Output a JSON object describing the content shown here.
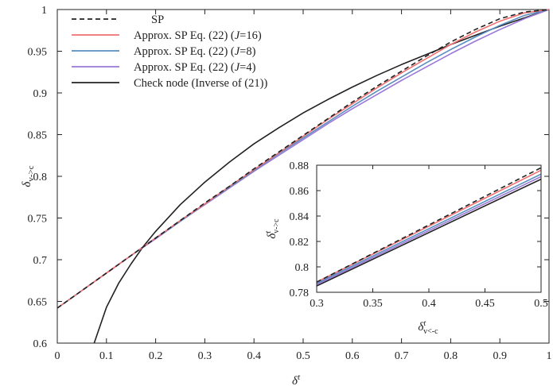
{
  "chart_data": [
    {
      "type": "line",
      "title": "",
      "xlabel": "δ",
      "xlabel_sup": "t",
      "ylabel": "δ",
      "ylabel_sub": "v->c",
      "xlim": [
        0,
        1
      ],
      "ylim": [
        0.6,
        1
      ],
      "x_ticks": [
        0,
        0.1,
        0.2,
        0.3,
        0.4,
        0.5,
        0.6,
        0.7,
        0.8,
        0.9,
        1
      ],
      "x_tick_labels": [
        "0",
        "0.1",
        "0.2",
        "0.3",
        "0.4",
        "0.5",
        "0.6",
        "0.7",
        "0.8",
        "0.9",
        "1"
      ],
      "y_ticks": [
        0.6,
        0.65,
        0.7,
        0.75,
        0.8,
        0.85,
        0.9,
        0.95,
        1
      ],
      "y_tick_labels": [
        "0.6",
        "0.65",
        "0.7",
        "0.75",
        "0.8",
        "0.85",
        "0.9",
        "0.95",
        "1"
      ],
      "grid": false,
      "legend_position": "top-left",
      "series": [
        {
          "name": "SP",
          "color": "#222222",
          "dash": true,
          "x": [
            0,
            0.05,
            0.1,
            0.15,
            0.2,
            0.25,
            0.3,
            0.35,
            0.4,
            0.45,
            0.5,
            0.55,
            0.6,
            0.65,
            0.7,
            0.75,
            0.8,
            0.85,
            0.9,
            0.95,
            1
          ],
          "y": [
            0.642,
            0.663,
            0.684,
            0.705,
            0.726,
            0.747,
            0.768,
            0.788,
            0.809,
            0.829,
            0.849,
            0.869,
            0.889,
            0.908,
            0.926,
            0.944,
            0.961,
            0.976,
            0.989,
            0.997,
            1.0
          ]
        },
        {
          "name": "Approx. SP Eq. (22) (J=16)",
          "name_parts": [
            "Approx. SP Eq. (22) (",
            "J",
            "=16)"
          ],
          "color": "#f07070",
          "dash": false,
          "x": [
            0,
            0.05,
            0.1,
            0.15,
            0.2,
            0.25,
            0.3,
            0.35,
            0.4,
            0.45,
            0.5,
            0.55,
            0.6,
            0.65,
            0.7,
            0.75,
            0.8,
            0.85,
            0.9,
            0.95,
            1
          ],
          "y": [
            0.642,
            0.663,
            0.684,
            0.705,
            0.726,
            0.747,
            0.767,
            0.788,
            0.808,
            0.828,
            0.848,
            0.868,
            0.887,
            0.906,
            0.924,
            0.941,
            0.958,
            0.973,
            0.986,
            0.996,
            1.0
          ]
        },
        {
          "name": "Approx. SP Eq. (22) (J=8)",
          "name_parts": [
            "Approx. SP Eq. (22) (",
            "J",
            "=8)"
          ],
          "color": "#5a8ec0",
          "dash": false,
          "x": [
            0,
            0.05,
            0.1,
            0.15,
            0.2,
            0.25,
            0.3,
            0.35,
            0.4,
            0.45,
            0.5,
            0.55,
            0.6,
            0.65,
            0.7,
            0.75,
            0.8,
            0.85,
            0.9,
            0.95,
            1
          ],
          "y": [
            0.642,
            0.663,
            0.684,
            0.705,
            0.726,
            0.746,
            0.767,
            0.787,
            0.807,
            0.827,
            0.846,
            0.865,
            0.884,
            0.902,
            0.919,
            0.936,
            0.952,
            0.967,
            0.981,
            0.993,
            1.0
          ]
        },
        {
          "name": "Approx. SP Eq. (22) (J=4)",
          "name_parts": [
            "Approx. SP Eq. (22) (",
            "J",
            "=4)"
          ],
          "color": "#9a78d8",
          "dash": false,
          "x": [
            0,
            0.05,
            0.1,
            0.15,
            0.2,
            0.25,
            0.3,
            0.35,
            0.4,
            0.45,
            0.5,
            0.55,
            0.6,
            0.65,
            0.7,
            0.75,
            0.8,
            0.85,
            0.9,
            0.95,
            1
          ],
          "y": [
            0.642,
            0.663,
            0.684,
            0.705,
            0.725,
            0.746,
            0.766,
            0.786,
            0.806,
            0.825,
            0.844,
            0.863,
            0.881,
            0.898,
            0.915,
            0.931,
            0.947,
            0.962,
            0.976,
            0.989,
            1.0
          ]
        },
        {
          "name": "Check node (Inverse of (21))",
          "color": "#222222",
          "dash": false,
          "x": [
            0.075,
            0.1,
            0.125,
            0.15,
            0.175,
            0.2,
            0.25,
            0.3,
            0.35,
            0.4,
            0.45,
            0.5,
            0.55,
            0.6,
            0.65,
            0.7,
            0.75,
            0.8,
            0.85,
            0.9,
            0.95,
            1
          ],
          "y": [
            0.6,
            0.643,
            0.672,
            0.695,
            0.716,
            0.734,
            0.766,
            0.793,
            0.817,
            0.839,
            0.858,
            0.876,
            0.892,
            0.907,
            0.921,
            0.934,
            0.946,
            0.958,
            0.969,
            0.98,
            0.99,
            1.0
          ]
        }
      ]
    },
    {
      "type": "line",
      "title": "",
      "xlabel": "δ",
      "xlabel_sup": "t",
      "xlabel_sub": "v<-c",
      "ylabel": "δ",
      "ylabel_sup": "t",
      "ylabel_sub": "v->c",
      "xlim": [
        0.3,
        0.5
      ],
      "ylim": [
        0.78,
        0.88
      ],
      "x_ticks": [
        0.3,
        0.35,
        0.4,
        0.45,
        0.5
      ],
      "x_tick_labels": [
        "0.3",
        "0.35",
        "0.4",
        "0.45",
        "0.5"
      ],
      "y_ticks": [
        0.78,
        0.8,
        0.82,
        0.84,
        0.86,
        0.88
      ],
      "y_tick_labels": [
        "0.78",
        "0.8",
        "0.82",
        "0.84",
        "0.86",
        "0.88"
      ],
      "grid": false,
      "legend_position": "none",
      "series": [
        {
          "color": "#222222",
          "dash": true,
          "x": [
            0.3,
            0.5
          ],
          "y": [
            0.788,
            0.878
          ]
        },
        {
          "color": "#f07070",
          "dash": false,
          "x": [
            0.3,
            0.5
          ],
          "y": [
            0.788,
            0.876
          ]
        },
        {
          "color": "#5a8ec0",
          "dash": false,
          "x": [
            0.3,
            0.5
          ],
          "y": [
            0.787,
            0.873
          ]
        },
        {
          "color": "#9a78d8",
          "dash": false,
          "x": [
            0.3,
            0.5
          ],
          "y": [
            0.786,
            0.871
          ]
        },
        {
          "color": "#222222",
          "dash": false,
          "x": [
            0.3,
            0.5
          ],
          "y": [
            0.785,
            0.869
          ]
        }
      ]
    }
  ]
}
